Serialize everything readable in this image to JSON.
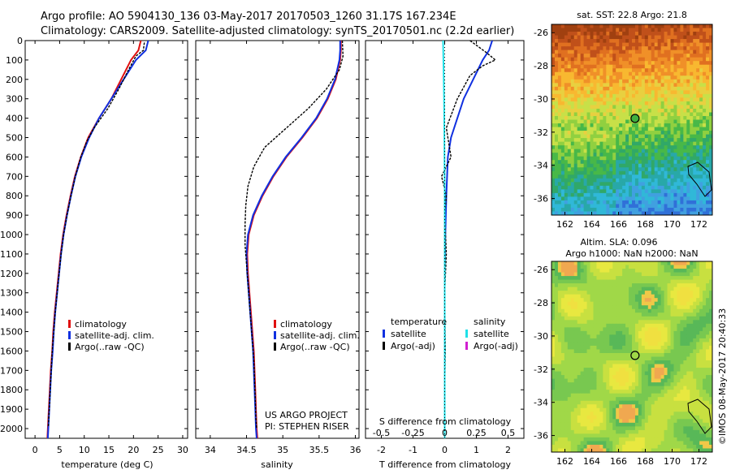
{
  "header": {
    "line1": "Argo profile: AO 5904130_136 03-May-2017 20170503_1260 31.17S 167.234E",
    "line2": "Climatology: CARS2009. Satellite-adjusted climatology: synTS_20170501.nc (2.2d earlier)"
  },
  "colors": {
    "climatology": "#e01010",
    "satellite": "#1030e0",
    "argo": "#000000",
    "sal_satellite": "#20e0e8",
    "sal_argo": "#d020d0"
  },
  "chart_data": [
    {
      "type": "line",
      "panel": "temperature",
      "xlabel": "temperature (deg C)",
      "xlim": [
        -2,
        31
      ],
      "xticks": [
        "0",
        "5",
        "10",
        "15",
        "20",
        "25",
        "30"
      ],
      "ylim": [
        2050,
        0
      ],
      "yticks": [
        "0",
        "100",
        "200",
        "300",
        "400",
        "500",
        "600",
        "700",
        "800",
        "900",
        "1000",
        "1100",
        "1200",
        "1300",
        "1400",
        "1500",
        "1600",
        "1700",
        "1800",
        "1900",
        "2000"
      ],
      "legend": [
        "climatology",
        "satellite-adj. clim.",
        "Argo(..raw -QC)"
      ],
      "series": [
        {
          "name": "climatology",
          "color_key": "climatology",
          "points": [
            [
              21.5,
              0
            ],
            [
              21,
              50
            ],
            [
              19.5,
              100
            ],
            [
              17.5,
              200
            ],
            [
              15.5,
              300
            ],
            [
              13,
              400
            ],
            [
              10.8,
              500
            ],
            [
              9.3,
              600
            ],
            [
              8.1,
              700
            ],
            [
              7.2,
              800
            ],
            [
              6.4,
              900
            ],
            [
              5.7,
              1000
            ],
            [
              5.2,
              1100
            ],
            [
              4.8,
              1200
            ],
            [
              4.4,
              1300
            ],
            [
              4.0,
              1400
            ],
            [
              3.7,
              1500
            ],
            [
              3.5,
              1600
            ],
            [
              3.2,
              1700
            ],
            [
              3.0,
              1800
            ],
            [
              2.8,
              1900
            ],
            [
              2.6,
              2000
            ],
            [
              2.5,
              2050
            ]
          ]
        },
        {
          "name": "satellite-adj. clim.",
          "color_key": "satellite",
          "points": [
            [
              23,
              0
            ],
            [
              22.5,
              50
            ],
            [
              20.5,
              100
            ],
            [
              18,
              200
            ],
            [
              15.5,
              300
            ],
            [
              13,
              400
            ],
            [
              11,
              500
            ],
            [
              9.4,
              600
            ],
            [
              8.2,
              700
            ],
            [
              7.3,
              800
            ],
            [
              6.5,
              900
            ],
            [
              5.8,
              1000
            ],
            [
              5.3,
              1100
            ],
            [
              4.9,
              1200
            ],
            [
              4.5,
              1300
            ],
            [
              4.1,
              1400
            ],
            [
              3.8,
              1500
            ],
            [
              3.6,
              1600
            ],
            [
              3.3,
              1700
            ],
            [
              3.1,
              1800
            ],
            [
              2.9,
              1900
            ],
            [
              2.7,
              2000
            ],
            [
              2.6,
              2050
            ]
          ]
        },
        {
          "name": "Argo(..raw -QC)",
          "color_key": "argo",
          "points": [
            [
              22.2,
              10
            ],
            [
              22,
              50
            ],
            [
              20.5,
              80
            ],
            [
              19,
              150
            ],
            [
              17,
              250
            ],
            [
              14.8,
              350
            ],
            [
              12,
              450
            ],
            [
              10.5,
              520
            ],
            [
              9.3,
              600
            ],
            [
              8.2,
              700
            ],
            [
              7.3,
              800
            ],
            [
              6.5,
              900
            ],
            [
              5.8,
              1000
            ],
            [
              5.3,
              1100
            ],
            [
              4.9,
              1200
            ],
            [
              4.5,
              1300
            ],
            [
              4.1,
              1400
            ],
            [
              3.8,
              1500
            ],
            [
              3.5,
              1600
            ],
            [
              3.3,
              1700
            ],
            [
              3.1,
              1800
            ],
            [
              2.9,
              1900
            ],
            [
              2.7,
              1990
            ]
          ]
        }
      ]
    },
    {
      "type": "line",
      "panel": "salinity",
      "xlabel": "salinity",
      "xlim": [
        33.8,
        36.05
      ],
      "xticks": [
        "34",
        "34.5",
        "35",
        "35.5",
        "36"
      ],
      "ylim": [
        2050,
        0
      ],
      "legend": [
        "climatology",
        "satellite-adj. clim.",
        "Argo(..raw -QC)"
      ],
      "annotation": [
        "US ARGO PROJECT",
        "PI: STEPHEN RISER"
      ],
      "series": [
        {
          "name": "climatology",
          "color_key": "climatology",
          "points": [
            [
              35.8,
              0
            ],
            [
              35.8,
              50
            ],
            [
              35.79,
              100
            ],
            [
              35.73,
              200
            ],
            [
              35.62,
              300
            ],
            [
              35.47,
              400
            ],
            [
              35.27,
              500
            ],
            [
              35.05,
              600
            ],
            [
              34.87,
              700
            ],
            [
              34.72,
              800
            ],
            [
              34.6,
              900
            ],
            [
              34.53,
              1000
            ],
            [
              34.51,
              1100
            ],
            [
              34.52,
              1200
            ],
            [
              34.54,
              1300
            ],
            [
              34.56,
              1400
            ],
            [
              34.58,
              1500
            ],
            [
              34.6,
              1600
            ],
            [
              34.61,
              1700
            ],
            [
              34.62,
              1800
            ],
            [
              34.63,
              1900
            ],
            [
              34.64,
              2000
            ],
            [
              34.65,
              2050
            ]
          ]
        },
        {
          "name": "satellite-adj. clim.",
          "color_key": "satellite",
          "points": [
            [
              35.79,
              0
            ],
            [
              35.79,
              50
            ],
            [
              35.78,
              100
            ],
            [
              35.72,
              200
            ],
            [
              35.61,
              300
            ],
            [
              35.46,
              400
            ],
            [
              35.26,
              500
            ],
            [
              35.04,
              600
            ],
            [
              34.86,
              700
            ],
            [
              34.71,
              800
            ],
            [
              34.59,
              900
            ],
            [
              34.52,
              1000
            ],
            [
              34.5,
              1100
            ],
            [
              34.51,
              1200
            ],
            [
              34.53,
              1300
            ],
            [
              34.55,
              1400
            ],
            [
              34.57,
              1500
            ],
            [
              34.59,
              1600
            ],
            [
              34.6,
              1700
            ],
            [
              34.61,
              1800
            ],
            [
              34.62,
              1900
            ],
            [
              34.63,
              2000
            ],
            [
              34.64,
              2050
            ]
          ]
        },
        {
          "name": "Argo(..raw -QC)",
          "color_key": "argo",
          "points": [
            [
              35.82,
              0
            ],
            [
              35.83,
              80
            ],
            [
              35.78,
              150
            ],
            [
              35.6,
              250
            ],
            [
              35.35,
              350
            ],
            [
              35.05,
              450
            ],
            [
              34.75,
              550
            ],
            [
              34.6,
              650
            ],
            [
              34.52,
              750
            ],
            [
              34.49,
              850
            ],
            [
              34.48,
              950
            ],
            [
              34.48,
              1050
            ],
            [
              34.5,
              1150
            ],
            [
              34.52,
              1250
            ],
            [
              34.54,
              1350
            ],
            [
              34.56,
              1450
            ],
            [
              34.58,
              1550
            ],
            [
              34.6,
              1650
            ],
            [
              34.61,
              1750
            ],
            [
              34.62,
              1850
            ],
            [
              34.63,
              1950
            ],
            [
              34.64,
              2000
            ]
          ]
        }
      ]
    },
    {
      "type": "line",
      "panel": "difference",
      "xlabel": "T difference from climatology",
      "xlabel_top": "S difference from climatology",
      "xlim": [
        -2.5,
        2.5
      ],
      "xticks": [
        "-2",
        "-1",
        "0",
        "1",
        "2"
      ],
      "xticks_s": [
        "-0.5",
        "-0.25",
        "0",
        "0.25",
        "0.5"
      ],
      "ylim": [
        2050,
        0
      ],
      "legend_left_title": "temperature",
      "legend_right_title": "salinity",
      "legend_left": [
        "satellite",
        "Argo(-adj)"
      ],
      "legend_right": [
        "satellite",
        "Argo(-adj)"
      ],
      "series": [
        {
          "name": "T satellite",
          "color_key": "satellite",
          "points": [
            [
              1.5,
              0
            ],
            [
              1.4,
              50
            ],
            [
              1.2,
              100
            ],
            [
              0.9,
              200
            ],
            [
              0.6,
              300
            ],
            [
              0.4,
              400
            ],
            [
              0.2,
              500
            ],
            [
              0.1,
              600
            ],
            [
              0.05,
              800
            ],
            [
              0.02,
              1000
            ],
            [
              0.0,
              1200
            ],
            [
              0.0,
              2050
            ]
          ]
        },
        {
          "name": "T Argo(-adj)",
          "color_key": "argo",
          "points": [
            [
              0.8,
              0
            ],
            [
              1.3,
              60
            ],
            [
              1.6,
              100
            ],
            [
              1.2,
              130
            ],
            [
              0.8,
              180
            ],
            [
              0.4,
              300
            ],
            [
              0.05,
              450
            ],
            [
              0.2,
              600
            ],
            [
              -0.1,
              700
            ],
            [
              0.05,
              800
            ],
            [
              0.0,
              900
            ],
            [
              0.05,
              1100
            ],
            [
              0.0,
              1300
            ],
            [
              0.02,
              1600
            ],
            [
              0.0,
              1800
            ],
            [
              0.0,
              2000
            ]
          ]
        },
        {
          "name": "S satellite",
          "color_key": "sal_satellite",
          "points": [
            [
              -0.05,
              0
            ],
            [
              -0.04,
              100
            ],
            [
              -0.02,
              300
            ],
            [
              -0.01,
              500
            ],
            [
              0.0,
              800
            ],
            [
              0.0,
              1200
            ],
            [
              0.0,
              2050
            ]
          ]
        }
      ]
    },
    {
      "type": "heatmap",
      "panel": "sst_map",
      "title": "sat. SST: 22.8 Argo: 21.8",
      "xticks": [
        "162",
        "164",
        "166",
        "168",
        "170",
        "172"
      ],
      "yticks": [
        "-26",
        "-28",
        "-30",
        "-32",
        "-34",
        "-36"
      ],
      "xlim": [
        161,
        173
      ],
      "ylim": [
        -37,
        -25.5
      ],
      "argo_position": [
        167.234,
        -31.17
      ]
    },
    {
      "type": "heatmap",
      "panel": "sla_map",
      "title_line1": "Altim. SLA: 0.096",
      "title_line2": "Argo h1000: NaN h2000: NaN",
      "xticks": [
        "162",
        "164",
        "166",
        "168",
        "170",
        "172"
      ],
      "yticks": [
        "-26",
        "-28",
        "-30",
        "-32",
        "-34",
        "-36"
      ],
      "xlim": [
        161,
        173
      ],
      "ylim": [
        -37,
        -25.5
      ],
      "argo_position": [
        167.234,
        -31.17
      ]
    }
  ],
  "footer": {
    "vertical_credit": "©IMOS 08-May-2017 20:40:33"
  }
}
